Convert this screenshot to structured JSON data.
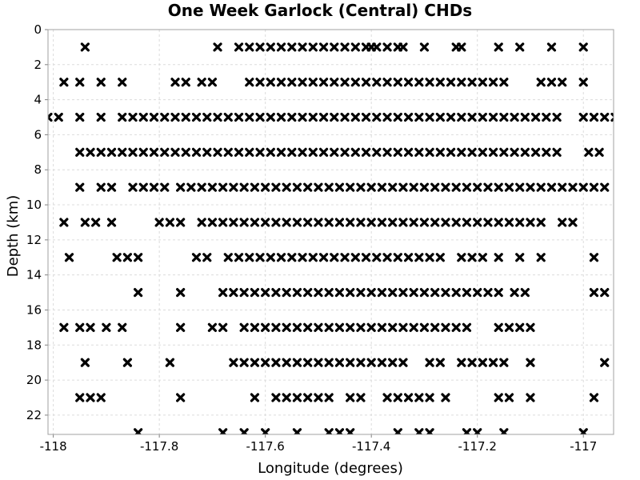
{
  "chart_data": {
    "type": "scatter",
    "title": "One Week Garlock (Central) CHDs",
    "xlabel": "Longitude (degrees)",
    "ylabel": "Depth (km)",
    "xlim": [
      -118.01,
      -116.943
    ],
    "ylim": [
      0,
      23.1
    ],
    "y_inverted": true,
    "grid": true,
    "xticks": [
      -118,
      -117.8,
      -117.6,
      -117.4,
      -117.2,
      -117
    ],
    "xtick_labels": [
      "-118",
      "-117.8",
      "-117.6",
      "-117.4",
      "-117.2",
      "-117"
    ],
    "yticks": [
      0,
      2,
      4,
      6,
      8,
      10,
      12,
      14,
      16,
      18,
      20,
      22
    ],
    "ytick_labels": [
      "0",
      "2",
      "4",
      "6",
      "8",
      "10",
      "12",
      "14",
      "16",
      "18",
      "20",
      "22"
    ],
    "marker": "x",
    "marker_color": "#000000",
    "rows": [
      {
        "depth": 1,
        "x": [
          -117.94,
          -117.69,
          -117.65,
          -117.63,
          -117.61,
          -117.59,
          -117.57,
          -117.55,
          -117.53,
          -117.51,
          -117.49,
          -117.47,
          -117.45,
          -117.43,
          -117.41,
          -117.4,
          -117.39,
          -117.37,
          -117.35,
          -117.34,
          -117.3,
          -117.24,
          -117.23,
          -117.16,
          -117.12,
          -117.06,
          -117.0
        ]
      },
      {
        "depth": 3,
        "x": [
          -117.98,
          -117.95,
          -117.91,
          -117.87,
          -117.77,
          -117.75,
          -117.72,
          -117.7,
          -117.63,
          -117.61,
          -117.59,
          -117.57,
          -117.55,
          -117.53,
          -117.51,
          -117.49,
          -117.47,
          -117.45,
          -117.43,
          -117.41,
          -117.39,
          -117.37,
          -117.35,
          -117.33,
          -117.31,
          -117.29,
          -117.27,
          -117.25,
          -117.23,
          -117.21,
          -117.19,
          -117.17,
          -117.15,
          -117.08,
          -117.06,
          -117.04,
          -117.0
        ]
      },
      {
        "depth": 5,
        "x": [
          -118.01,
          -117.99,
          -117.95,
          -117.91,
          -117.87,
          -117.85,
          -117.83,
          -117.81,
          -117.79,
          -117.77,
          -117.75,
          -117.73,
          -117.71,
          -117.69,
          -117.67,
          -117.65,
          -117.63,
          -117.61,
          -117.59,
          -117.57,
          -117.55,
          -117.53,
          -117.51,
          -117.49,
          -117.47,
          -117.45,
          -117.43,
          -117.41,
          -117.39,
          -117.37,
          -117.35,
          -117.33,
          -117.31,
          -117.29,
          -117.27,
          -117.25,
          -117.23,
          -117.21,
          -117.19,
          -117.17,
          -117.15,
          -117.13,
          -117.11,
          -117.09,
          -117.07,
          -117.05,
          -117.0,
          -116.98,
          -116.96,
          -116.94
        ]
      },
      {
        "depth": 7,
        "x": [
          -117.95,
          -117.93,
          -117.91,
          -117.89,
          -117.87,
          -117.85,
          -117.83,
          -117.81,
          -117.79,
          -117.77,
          -117.75,
          -117.73,
          -117.71,
          -117.69,
          -117.67,
          -117.65,
          -117.63,
          -117.61,
          -117.59,
          -117.57,
          -117.55,
          -117.53,
          -117.51,
          -117.49,
          -117.47,
          -117.45,
          -117.43,
          -117.41,
          -117.39,
          -117.37,
          -117.35,
          -117.33,
          -117.31,
          -117.29,
          -117.27,
          -117.25,
          -117.23,
          -117.21,
          -117.19,
          -117.17,
          -117.15,
          -117.13,
          -117.11,
          -117.09,
          -117.07,
          -117.05,
          -116.99,
          -116.97,
          -116.91
        ]
      },
      {
        "depth": 9,
        "x": [
          -117.95,
          -117.91,
          -117.89,
          -117.85,
          -117.83,
          -117.81,
          -117.79,
          -117.76,
          -117.74,
          -117.72,
          -117.7,
          -117.68,
          -117.66,
          -117.64,
          -117.62,
          -117.6,
          -117.58,
          -117.56,
          -117.54,
          -117.52,
          -117.5,
          -117.48,
          -117.46,
          -117.44,
          -117.42,
          -117.4,
          -117.38,
          -117.36,
          -117.34,
          -117.32,
          -117.3,
          -117.28,
          -117.26,
          -117.24,
          -117.22,
          -117.2,
          -117.18,
          -117.16,
          -117.14,
          -117.12,
          -117.1,
          -117.08,
          -117.06,
          -117.04,
          -117.02,
          -117.0,
          -116.98,
          -116.96,
          -116.93,
          -116.91
        ]
      },
      {
        "depth": 11,
        "x": [
          -117.98,
          -117.94,
          -117.92,
          -117.89,
          -117.8,
          -117.78,
          -117.76,
          -117.72,
          -117.7,
          -117.68,
          -117.66,
          -117.64,
          -117.62,
          -117.6,
          -117.58,
          -117.56,
          -117.54,
          -117.52,
          -117.5,
          -117.48,
          -117.46,
          -117.44,
          -117.42,
          -117.4,
          -117.38,
          -117.36,
          -117.34,
          -117.32,
          -117.3,
          -117.28,
          -117.26,
          -117.24,
          -117.22,
          -117.2,
          -117.18,
          -117.16,
          -117.14,
          -117.12,
          -117.1,
          -117.08,
          -117.04,
          -117.02
        ]
      },
      {
        "depth": 13,
        "x": [
          -117.97,
          -117.88,
          -117.86,
          -117.84,
          -117.73,
          -117.71,
          -117.67,
          -117.65,
          -117.63,
          -117.61,
          -117.59,
          -117.57,
          -117.55,
          -117.53,
          -117.51,
          -117.49,
          -117.47,
          -117.45,
          -117.43,
          -117.41,
          -117.39,
          -117.37,
          -117.35,
          -117.33,
          -117.31,
          -117.29,
          -117.27,
          -117.23,
          -117.21,
          -117.19,
          -117.16,
          -117.12,
          -117.08,
          -116.98,
          -116.92
        ]
      },
      {
        "depth": 15,
        "x": [
          -117.84,
          -117.76,
          -117.68,
          -117.66,
          -117.64,
          -117.62,
          -117.6,
          -117.58,
          -117.56,
          -117.54,
          -117.52,
          -117.5,
          -117.48,
          -117.46,
          -117.44,
          -117.42,
          -117.4,
          -117.38,
          -117.36,
          -117.34,
          -117.32,
          -117.3,
          -117.28,
          -117.26,
          -117.24,
          -117.22,
          -117.2,
          -117.18,
          -117.16,
          -117.13,
          -117.11,
          -116.98,
          -116.96
        ]
      },
      {
        "depth": 17,
        "x": [
          -117.98,
          -117.95,
          -117.93,
          -117.9,
          -117.87,
          -117.76,
          -117.7,
          -117.68,
          -117.64,
          -117.62,
          -117.6,
          -117.58,
          -117.56,
          -117.54,
          -117.52,
          -117.5,
          -117.48,
          -117.46,
          -117.44,
          -117.42,
          -117.4,
          -117.38,
          -117.36,
          -117.34,
          -117.32,
          -117.3,
          -117.28,
          -117.26,
          -117.24,
          -117.22,
          -117.16,
          -117.14,
          -117.12,
          -117.1
        ]
      },
      {
        "depth": 19,
        "x": [
          -117.94,
          -117.86,
          -117.78,
          -117.66,
          -117.64,
          -117.62,
          -117.6,
          -117.58,
          -117.56,
          -117.54,
          -117.52,
          -117.5,
          -117.48,
          -117.46,
          -117.44,
          -117.42,
          -117.4,
          -117.38,
          -117.36,
          -117.34,
          -117.29,
          -117.27,
          -117.23,
          -117.21,
          -117.19,
          -117.17,
          -117.15,
          -117.1,
          -116.96
        ]
      },
      {
        "depth": 21,
        "x": [
          -117.95,
          -117.93,
          -117.91,
          -117.76,
          -117.62,
          -117.58,
          -117.56,
          -117.54,
          -117.52,
          -117.5,
          -117.48,
          -117.44,
          -117.42,
          -117.37,
          -117.35,
          -117.33,
          -117.31,
          -117.29,
          -117.26,
          -117.16,
          -117.14,
          -117.1,
          -116.98
        ]
      },
      {
        "depth": 23,
        "x": [
          -117.84,
          -117.68,
          -117.64,
          -117.6,
          -117.54,
          -117.48,
          -117.46,
          -117.44,
          -117.35,
          -117.31,
          -117.29,
          -117.22,
          -117.2,
          -117.15,
          -117.0
        ]
      }
    ]
  }
}
